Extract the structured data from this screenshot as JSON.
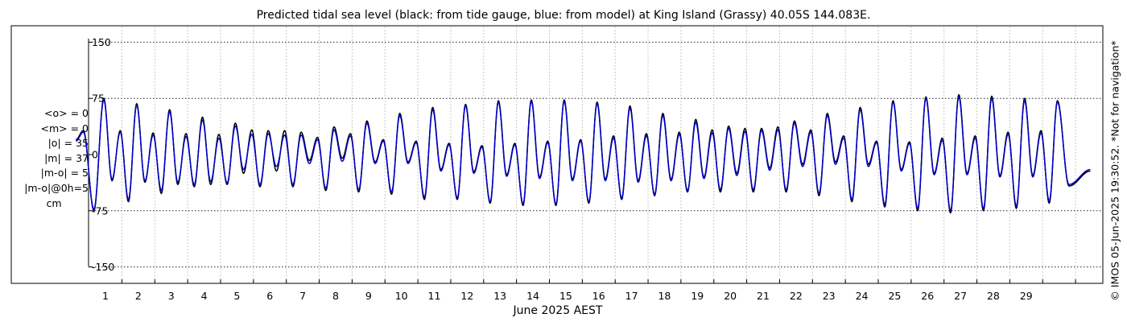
{
  "chart_data": {
    "type": "line",
    "title": "Predicted tidal sea level (black: from tide gauge, blue: from model) at King Island (Grassy) 40.05S 144.083E.",
    "xlabel": "June 2025 AEST",
    "ylabel": "",
    "x_ticks": [
      "1",
      "2",
      "3",
      "4",
      "5",
      "6",
      "7",
      "8",
      "9",
      "10",
      "11",
      "12",
      "13",
      "14",
      "15",
      "16",
      "17",
      "18",
      "19",
      "20",
      "21",
      "22",
      "23",
      "24",
      "25",
      "26",
      "27",
      "28",
      "29"
    ],
    "x_range_days": [
      0.1,
      30.95
    ],
    "y_ticks": [
      150,
      75,
      0,
      -75,
      -150
    ],
    "ylim": [
      -160,
      165
    ],
    "grid": true,
    "series": [
      {
        "name": "tide gauge",
        "color": "#000000",
        "peaks": [
          [
            0.33,
            32
          ],
          [
            0.65,
            -75
          ],
          [
            0.95,
            75
          ],
          [
            1.2,
            -35
          ],
          [
            1.45,
            32
          ],
          [
            1.7,
            -63
          ],
          [
            1.95,
            68
          ],
          [
            2.2,
            -37
          ],
          [
            2.45,
            29
          ],
          [
            2.7,
            -52
          ],
          [
            2.95,
            60
          ],
          [
            3.2,
            -40
          ],
          [
            3.45,
            28
          ],
          [
            3.7,
            -43
          ],
          [
            3.95,
            50
          ],
          [
            4.2,
            -40
          ],
          [
            4.45,
            27
          ],
          [
            4.7,
            -40
          ],
          [
            4.95,
            42
          ],
          [
            5.2,
            -25
          ],
          [
            5.45,
            33
          ],
          [
            5.7,
            -43
          ],
          [
            5.95,
            32
          ],
          [
            6.2,
            -22
          ],
          [
            6.45,
            32
          ],
          [
            6.7,
            -43
          ],
          [
            6.95,
            30
          ],
          [
            7.2,
            -8
          ],
          [
            7.45,
            23
          ],
          [
            7.7,
            -48
          ],
          [
            7.95,
            37
          ],
          [
            8.2,
            -5
          ],
          [
            8.45,
            28
          ],
          [
            8.7,
            -50
          ],
          [
            8.95,
            45
          ],
          [
            9.2,
            -10
          ],
          [
            9.45,
            20
          ],
          [
            9.7,
            -53
          ],
          [
            9.95,
            55
          ],
          [
            10.2,
            -10
          ],
          [
            10.45,
            18
          ],
          [
            10.7,
            -60
          ],
          [
            10.95,
            63
          ],
          [
            11.2,
            -20
          ],
          [
            11.45,
            15
          ],
          [
            11.7,
            -60
          ],
          [
            11.95,
            67
          ],
          [
            12.2,
            -23
          ],
          [
            12.45,
            12
          ],
          [
            12.7,
            -65
          ],
          [
            12.95,
            72
          ],
          [
            13.2,
            -27
          ],
          [
            13.45,
            15
          ],
          [
            13.7,
            -68
          ],
          [
            13.95,
            73
          ],
          [
            14.2,
            -30
          ],
          [
            14.45,
            18
          ],
          [
            14.7,
            -68
          ],
          [
            14.95,
            73
          ],
          [
            15.2,
            -33
          ],
          [
            15.45,
            20
          ],
          [
            15.7,
            -65
          ],
          [
            15.95,
            70
          ],
          [
            16.2,
            -33
          ],
          [
            16.45,
            25
          ],
          [
            16.7,
            -60
          ],
          [
            16.95,
            65
          ],
          [
            17.2,
            -35
          ],
          [
            17.45,
            28
          ],
          [
            17.7,
            -55
          ],
          [
            17.95,
            55
          ],
          [
            18.2,
            -33
          ],
          [
            18.45,
            30
          ],
          [
            18.7,
            -50
          ],
          [
            18.95,
            47
          ],
          [
            19.2,
            -30
          ],
          [
            19.45,
            33
          ],
          [
            19.7,
            -50
          ],
          [
            19.95,
            38
          ],
          [
            20.2,
            -25
          ],
          [
            20.45,
            35
          ],
          [
            20.7,
            -50
          ],
          [
            20.95,
            35
          ],
          [
            21.2,
            -18
          ],
          [
            21.45,
            37
          ],
          [
            21.7,
            -50
          ],
          [
            21.95,
            45
          ],
          [
            22.2,
            -13
          ],
          [
            22.45,
            33
          ],
          [
            22.7,
            -55
          ],
          [
            22.95,
            55
          ],
          [
            23.2,
            -10
          ],
          [
            23.45,
            25
          ],
          [
            23.7,
            -63
          ],
          [
            23.95,
            63
          ],
          [
            24.2,
            -13
          ],
          [
            24.45,
            18
          ],
          [
            24.7,
            -70
          ],
          [
            24.95,
            72
          ],
          [
            25.2,
            -20
          ],
          [
            25.45,
            17
          ],
          [
            25.7,
            -75
          ],
          [
            25.95,
            77
          ],
          [
            26.2,
            -25
          ],
          [
            26.45,
            22
          ],
          [
            26.7,
            -78
          ],
          [
            26.95,
            80
          ],
          [
            27.2,
            -25
          ],
          [
            27.45,
            25
          ],
          [
            27.7,
            -75
          ],
          [
            27.95,
            78
          ],
          [
            28.2,
            -28
          ],
          [
            28.45,
            30
          ],
          [
            28.7,
            -72
          ],
          [
            28.95,
            75
          ],
          [
            29.2,
            -28
          ],
          [
            29.45,
            32
          ],
          [
            29.7,
            -65
          ],
          [
            29.95,
            72
          ],
          [
            30.3,
            -42
          ]
        ]
      },
      {
        "name": "model",
        "color": "#0000cc",
        "peaks": [
          [
            0.33,
            30
          ],
          [
            0.65,
            -73
          ],
          [
            0.95,
            73
          ],
          [
            1.2,
            -33
          ],
          [
            1.45,
            30
          ],
          [
            1.7,
            -60
          ],
          [
            1.95,
            66
          ],
          [
            2.2,
            -35
          ],
          [
            2.45,
            26
          ],
          [
            2.7,
            -48
          ],
          [
            2.95,
            57
          ],
          [
            3.2,
            -37
          ],
          [
            3.45,
            24
          ],
          [
            3.7,
            -40
          ],
          [
            3.95,
            46
          ],
          [
            4.2,
            -36
          ],
          [
            4.45,
            22
          ],
          [
            4.7,
            -38
          ],
          [
            4.95,
            38
          ],
          [
            5.2,
            -20
          ],
          [
            5.45,
            27
          ],
          [
            5.7,
            -40
          ],
          [
            5.95,
            28
          ],
          [
            6.2,
            -16
          ],
          [
            6.45,
            26
          ],
          [
            6.7,
            -40
          ],
          [
            6.95,
            26
          ],
          [
            7.2,
            -12
          ],
          [
            7.45,
            20
          ],
          [
            7.7,
            -45
          ],
          [
            7.95,
            33
          ],
          [
            8.2,
            -9
          ],
          [
            8.45,
            25
          ],
          [
            8.7,
            -47
          ],
          [
            8.95,
            42
          ],
          [
            9.2,
            -12
          ],
          [
            9.45,
            18
          ],
          [
            9.7,
            -50
          ],
          [
            9.95,
            52
          ],
          [
            10.2,
            -12
          ],
          [
            10.45,
            16
          ],
          [
            10.7,
            -57
          ],
          [
            10.95,
            60
          ],
          [
            11.2,
            -22
          ],
          [
            11.45,
            13
          ],
          [
            11.7,
            -58
          ],
          [
            11.95,
            65
          ],
          [
            12.2,
            -25
          ],
          [
            12.45,
            10
          ],
          [
            12.7,
            -63
          ],
          [
            12.95,
            70
          ],
          [
            13.2,
            -29
          ],
          [
            13.45,
            13
          ],
          [
            13.7,
            -66
          ],
          [
            13.95,
            71
          ],
          [
            14.2,
            -32
          ],
          [
            14.45,
            16
          ],
          [
            14.7,
            -66
          ],
          [
            14.95,
            71
          ],
          [
            15.2,
            -35
          ],
          [
            15.45,
            18
          ],
          [
            15.7,
            -63
          ],
          [
            15.95,
            68
          ],
          [
            16.2,
            -35
          ],
          [
            16.45,
            22
          ],
          [
            16.7,
            -58
          ],
          [
            16.95,
            62
          ],
          [
            17.2,
            -37
          ],
          [
            17.45,
            25
          ],
          [
            17.7,
            -53
          ],
          [
            17.95,
            52
          ],
          [
            18.2,
            -35
          ],
          [
            18.45,
            27
          ],
          [
            18.7,
            -48
          ],
          [
            18.95,
            43
          ],
          [
            19.2,
            -32
          ],
          [
            19.45,
            29
          ],
          [
            19.7,
            -47
          ],
          [
            19.95,
            35
          ],
          [
            20.2,
            -28
          ],
          [
            20.45,
            31
          ],
          [
            20.7,
            -47
          ],
          [
            20.95,
            32
          ],
          [
            21.2,
            -21
          ],
          [
            21.45,
            33
          ],
          [
            21.7,
            -47
          ],
          [
            21.95,
            42
          ],
          [
            22.2,
            -16
          ],
          [
            22.45,
            30
          ],
          [
            22.7,
            -52
          ],
          [
            22.95,
            52
          ],
          [
            23.2,
            -13
          ],
          [
            23.45,
            22
          ],
          [
            23.7,
            -60
          ],
          [
            23.95,
            60
          ],
          [
            24.2,
            -16
          ],
          [
            24.45,
            16
          ],
          [
            24.7,
            -67
          ],
          [
            24.95,
            70
          ],
          [
            25.2,
            -22
          ],
          [
            25.45,
            15
          ],
          [
            25.7,
            -72
          ],
          [
            25.95,
            75
          ],
          [
            26.2,
            -27
          ],
          [
            26.45,
            19
          ],
          [
            26.7,
            -75
          ],
          [
            26.95,
            77
          ],
          [
            27.2,
            -27
          ],
          [
            27.45,
            22
          ],
          [
            27.7,
            -72
          ],
          [
            27.95,
            75
          ],
          [
            28.2,
            -30
          ],
          [
            28.45,
            27
          ],
          [
            28.7,
            -69
          ],
          [
            28.95,
            72
          ],
          [
            29.2,
            -30
          ],
          [
            29.45,
            29
          ],
          [
            29.7,
            -62
          ],
          [
            29.95,
            70
          ],
          [
            30.3,
            -40
          ]
        ]
      }
    ]
  },
  "stats": {
    "lines": [
      "<o> = 0",
      "<m> = 0",
      "|o| = 35",
      "|m| = 37",
      "|m-o| = 5",
      "|m-o|@0h=5"
    ],
    "unit": "cm"
  },
  "credit": "© IMOS 05-Jun-2025 19:30:52. *Not for navigation*"
}
